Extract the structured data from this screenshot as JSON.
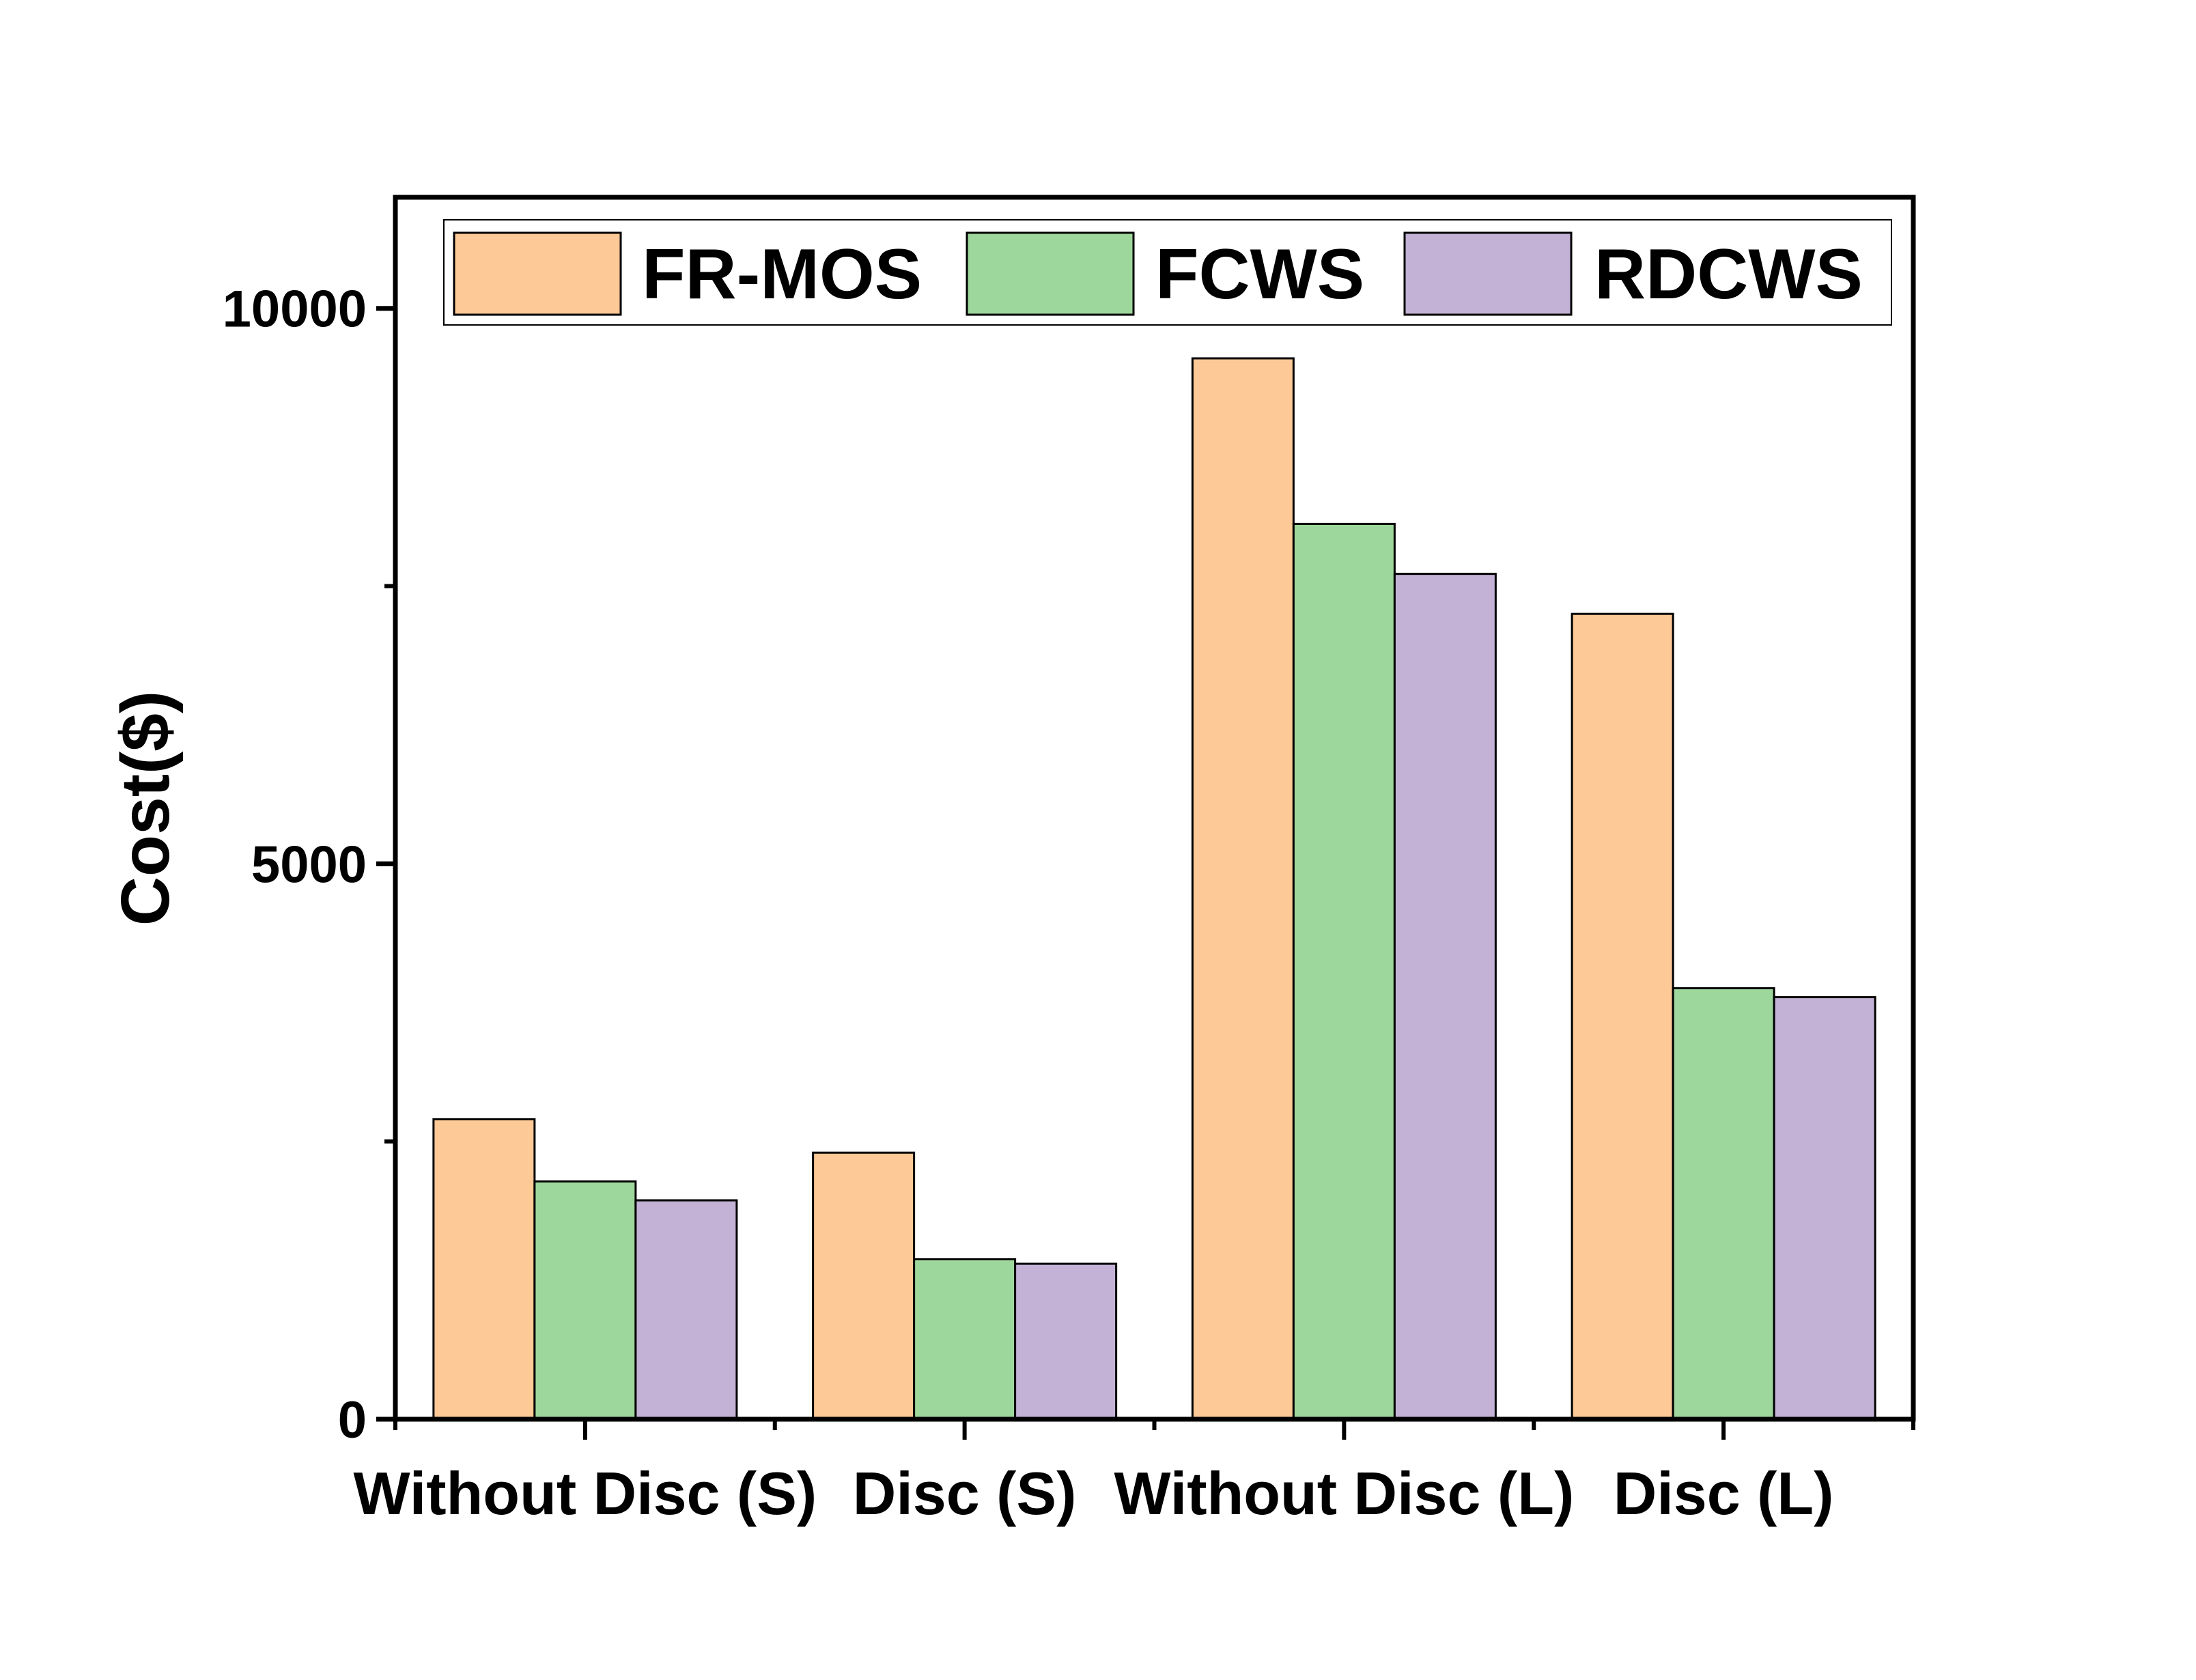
{
  "chart_data": {
    "type": "bar",
    "title": "",
    "xlabel": "",
    "ylabel": "Cost($)",
    "categories": [
      "Without Disc (S)",
      "Disc (S)",
      "Without Disc (L)",
      "Disc (L)"
    ],
    "series": [
      {
        "name": "FR-MOS",
        "color": "#FCC997",
        "values": [
          2700,
          2400,
          9550,
          7250
        ]
      },
      {
        "name": "FCWS",
        "color": "#9ED79B",
        "values": [
          2140,
          1440,
          8060,
          3880
        ]
      },
      {
        "name": "RDCWS",
        "color": "#C3B2D6",
        "values": [
          1970,
          1400,
          7610,
          3800
        ]
      }
    ],
    "ylim": [
      0,
      11000
    ],
    "yticks": [
      0,
      5000,
      10000
    ],
    "grid": false,
    "legend": "top"
  }
}
